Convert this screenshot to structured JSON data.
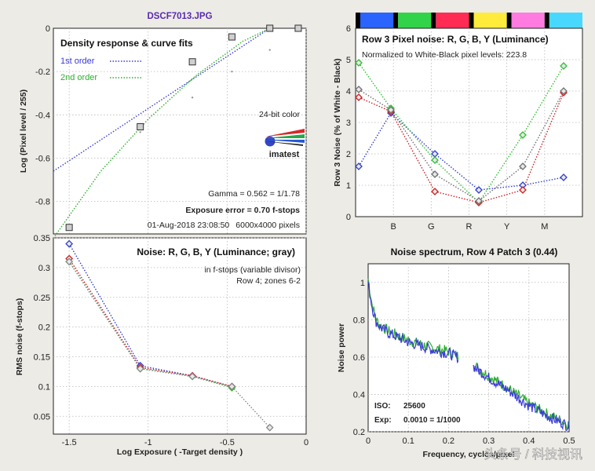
{
  "window": {
    "filename": "DSCF7013.JPG"
  },
  "panels": {
    "density": {
      "title": "Density response & curve fits",
      "legend": [
        {
          "label": "1st order",
          "color": "#3a3ad8"
        },
        {
          "label": "2nd order",
          "color": "#2fae2f"
        }
      ],
      "color_note": "24-bit color",
      "logo_text": "imatest",
      "gamma": "Gamma = 0.562 = 1/1.78",
      "exposure_error": "Exposure error = 0.70 f-stops",
      "exposure_error_color": "#c00000",
      "timestamp": "01-Aug-2018 23:08:50",
      "size": "6000x4000 pixels",
      "ylabel": "Log (Pixel level / 255)"
    },
    "row3": {
      "title": "Row 3 Pixel noise: R, G, B, Y (Luminance)",
      "subtitle": "Normalized to White-Black pixel levels: 223.8",
      "ylabel": "Row 3 Noise (% of White - Black)",
      "strip_colors": [
        "#000000",
        "#2b63ff",
        "#000000",
        "#31d34a",
        "#000000",
        "#ff2b55",
        "#000000",
        "#ffeb3b",
        "#000000",
        "#ff7be0",
        "#000000",
        "#48d8ff"
      ]
    },
    "noise": {
      "title": "Noise: R, G, B, Y (Luminance; gray)",
      "note1": "in f-stops (variable divisor)",
      "note2": "Row 4; zones 6-2",
      "ylabel": "RMS noise (f-stops)",
      "xlabel": "Log Exposure ( -Target density )"
    },
    "spectrum": {
      "title": "Noise spectrum, Row 4 Patch 3 (0.44)",
      "ylabel": "Noise power",
      "xlabel": "Frequency, cycles/pixel",
      "iso_label": "ISO:",
      "iso_value": "25600",
      "exp_label": "Exp:",
      "exp_value": "0.0010 = 1/1000"
    }
  },
  "watermark": "头条号 / 科技视讯",
  "chart_data": [
    {
      "type": "scatter",
      "name": "density",
      "x_axis": "log exposure (shared with noise plot, -1.6 to 0)",
      "ylim": [
        -0.95,
        0
      ],
      "yticks": [
        0,
        -0.2,
        -0.4,
        -0.6,
        -0.8
      ],
      "points": [
        {
          "x": -1.5,
          "y": -0.92
        },
        {
          "x": -1.05,
          "y": -0.455
        },
        {
          "x": -0.72,
          "y": -0.155
        },
        {
          "x": -0.47,
          "y": -0.04
        },
        {
          "x": -0.23,
          "y": 0
        },
        {
          "x": -0.05,
          "y": 0
        }
      ],
      "minor_points": [
        {
          "x": -1.05,
          "y": -0.48
        },
        {
          "x": -0.72,
          "y": -0.32
        },
        {
          "x": -0.47,
          "y": -0.2
        },
        {
          "x": -0.23,
          "y": -0.1
        }
      ],
      "fit_1st": {
        "x": [
          -1.6,
          -0.23
        ],
        "y": [
          -0.66,
          0.0
        ]
      },
      "fit_2nd": {
        "x": [
          -1.6,
          -1.3,
          -1.0,
          -0.7,
          -0.4,
          -0.23
        ],
        "y": [
          -0.97,
          -0.66,
          -0.42,
          -0.22,
          -0.06,
          0.0
        ]
      },
      "grid": true,
      "legend": "top-left"
    },
    {
      "type": "line",
      "name": "row3",
      "categories": [
        "",
        "B",
        "G",
        "R",
        "Y",
        "M"
      ],
      "ylim": [
        0,
        6
      ],
      "yticks": [
        0,
        1,
        2,
        3,
        4,
        5,
        6
      ],
      "series": [
        {
          "color": "#2f3fd0",
          "values": [
            1.6,
            3.3,
            2.0,
            0.85,
            1.0,
            1.25
          ]
        },
        {
          "color": "#2fc02f",
          "values": [
            4.9,
            3.45,
            1.8,
            0.45,
            2.6,
            4.8
          ]
        },
        {
          "color": "#d02020",
          "values": [
            3.8,
            3.35,
            0.8,
            0.45,
            0.85,
            3.95
          ]
        },
        {
          "color": "#707070",
          "values": [
            4.05,
            3.4,
            1.35,
            0.5,
            1.6,
            4.0
          ]
        }
      ],
      "grid": true
    },
    {
      "type": "line",
      "name": "noise",
      "xlim": [
        -1.6,
        0
      ],
      "xticks": [
        -1.5,
        -1,
        -0.5,
        0
      ],
      "ylim": [
        0.02,
        0.35
      ],
      "yticks": [
        0.05,
        0.1,
        0.15,
        0.2,
        0.25,
        0.3,
        0.35
      ],
      "x": [
        -1.5,
        -1.05,
        -0.72,
        -0.47,
        -0.23
      ],
      "series": [
        {
          "color": "#2f3fd0",
          "values": [
            0.34,
            0.135,
            0.118,
            0.1,
            null
          ]
        },
        {
          "color": "#2fc02f",
          "values": [
            0.31,
            0.13,
            0.117,
            0.098,
            null
          ]
        },
        {
          "color": "#d02020",
          "values": [
            0.315,
            0.132,
            0.118,
            0.1,
            null
          ]
        },
        {
          "color": "#888888",
          "values": [
            0.31,
            0.13,
            0.117,
            0.1,
            0.031
          ]
        }
      ],
      "grid": true
    },
    {
      "type": "line",
      "name": "spectrum",
      "xlim": [
        0,
        0.5
      ],
      "xticks": [
        0,
        0.1,
        0.2,
        0.3,
        0.4,
        0.5
      ],
      "ylim": [
        0.2,
        1.1
      ],
      "yticks": [
        0.2,
        0.4,
        0.6,
        0.8,
        1
      ],
      "x": [
        0,
        0.005,
        0.01,
        0.02,
        0.03,
        0.05,
        0.08,
        0.1,
        0.13,
        0.16,
        0.2,
        0.25,
        0.3,
        0.35,
        0.4,
        0.45,
        0.5
      ],
      "series": [
        {
          "color": "#2fae2f",
          "values": [
            1.02,
            0.95,
            0.88,
            0.8,
            0.77,
            0.74,
            0.71,
            0.69,
            0.67,
            0.65,
            0.63,
            0.58,
            0.5,
            0.43,
            0.35,
            0.29,
            0.24
          ]
        },
        {
          "color": "#3a3ad8",
          "values": [
            1.0,
            0.93,
            0.87,
            0.79,
            0.76,
            0.73,
            0.7,
            0.68,
            0.66,
            0.64,
            0.62,
            0.57,
            0.49,
            0.42,
            0.34,
            0.28,
            0.23
          ]
        }
      ],
      "grid": true
    }
  ]
}
